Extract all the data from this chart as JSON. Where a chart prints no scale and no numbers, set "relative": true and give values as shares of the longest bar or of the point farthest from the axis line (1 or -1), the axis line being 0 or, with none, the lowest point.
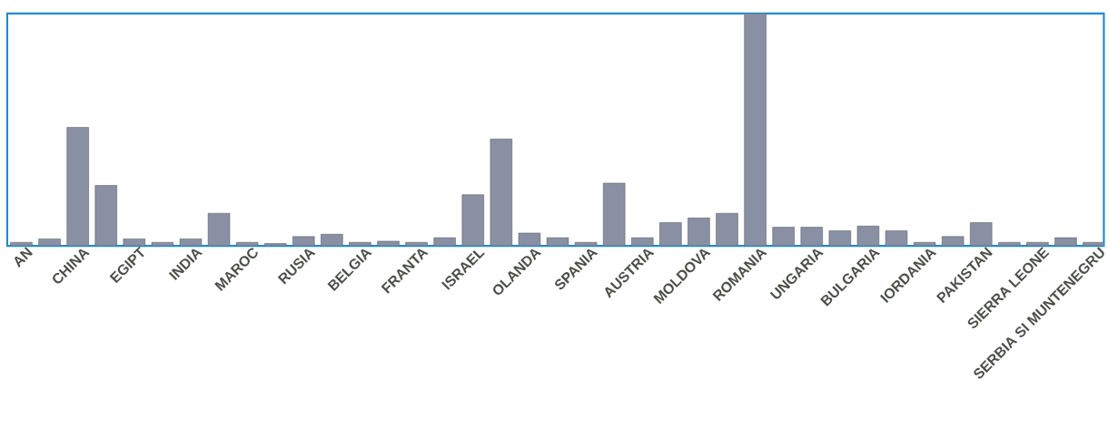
{
  "chart_data": {
    "type": "bar",
    "relative": true,
    "color": "#8a90a3",
    "categories": [
      "AN",
      null,
      "CHINA",
      null,
      "EGIPT",
      null,
      "INDIA",
      null,
      "MAROC",
      null,
      "RUSIA",
      null,
      "BELGIA",
      null,
      "FRANTA",
      null,
      "ISRAEL",
      null,
      "OLANDA",
      null,
      "SPANIA",
      null,
      "AUSTRIA",
      null,
      "MOLDOVA",
      null,
      "ROMANIA",
      null,
      "UNGARIA",
      null,
      "BULGARIA",
      null,
      "IORDANIA",
      null,
      "PAKISTAN",
      null,
      "SIERRA LEONE",
      null,
      "SERBIA SI MUNTENEGRU"
    ],
    "values": [
      0.015,
      0.03,
      0.51,
      0.26,
      0.03,
      0.015,
      0.03,
      0.14,
      0.015,
      0.01,
      0.04,
      0.05,
      0.015,
      0.02,
      0.015,
      0.035,
      0.22,
      0.46,
      0.055,
      0.035,
      0.015,
      0.27,
      0.035,
      0.1,
      0.12,
      0.14,
      1,
      0.08,
      0.08,
      0.065,
      0.085,
      0.065,
      0.015,
      0.04,
      0.1,
      0.015,
      0.015,
      0.035,
      0.015
    ]
  }
}
